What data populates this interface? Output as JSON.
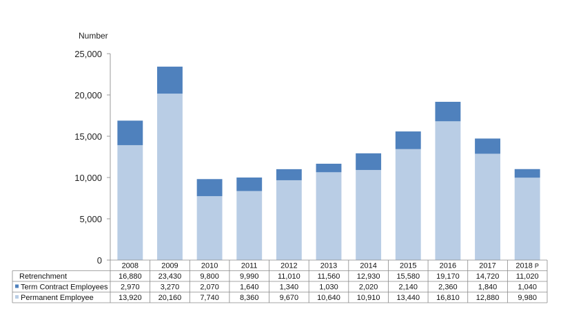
{
  "chart_data": {
    "type": "bar",
    "stacked": true,
    "ylabel": "Number",
    "ylim": [
      0,
      25000
    ],
    "yticks": [
      "0",
      "5,000",
      "10,000",
      "15,000",
      "20,000",
      "25,000"
    ],
    "categories": [
      "2008",
      "2009",
      "2010",
      "2011",
      "2012",
      "2013",
      "2014",
      "2015",
      "2016",
      "2017",
      "2018"
    ],
    "category_suffix": [
      "",
      "",
      "",
      "",
      "",
      "",
      "",
      "",
      "",
      "",
      "P"
    ],
    "grid": false,
    "legend": "table-bottom",
    "total": {
      "name": "Retrenchment",
      "values": [
        16880,
        23430,
        9800,
        9990,
        11010,
        11560,
        12930,
        15580,
        19170,
        14720,
        11020
      ],
      "labels": [
        "16,880",
        "23,430",
        "9,800",
        "9,990",
        "11,010",
        "11,560",
        "12,930",
        "15,580",
        "19,170",
        "14,720",
        "11,020"
      ]
    },
    "series": [
      {
        "name": "Permanent Employee",
        "color": "#b9cde5",
        "values": [
          13920,
          20160,
          7740,
          8360,
          9670,
          10640,
          10910,
          13440,
          16810,
          12880,
          9980
        ],
        "labels": [
          "13,920",
          "20,160",
          "7,740",
          "8,360",
          "9,670",
          "10,640",
          "10,910",
          "13,440",
          "16,810",
          "12,880",
          "9,980"
        ]
      },
      {
        "name": "Term Contract Employees",
        "color": "#4f81bd",
        "values": [
          2970,
          3270,
          2070,
          1640,
          1340,
          1030,
          2020,
          2140,
          2360,
          1840,
          1040
        ],
        "labels": [
          "2,970",
          "3,270",
          "2,070",
          "1,640",
          "1,340",
          "1,030",
          "2,020",
          "2,140",
          "2,360",
          "1,840",
          "1,040"
        ]
      }
    ]
  }
}
